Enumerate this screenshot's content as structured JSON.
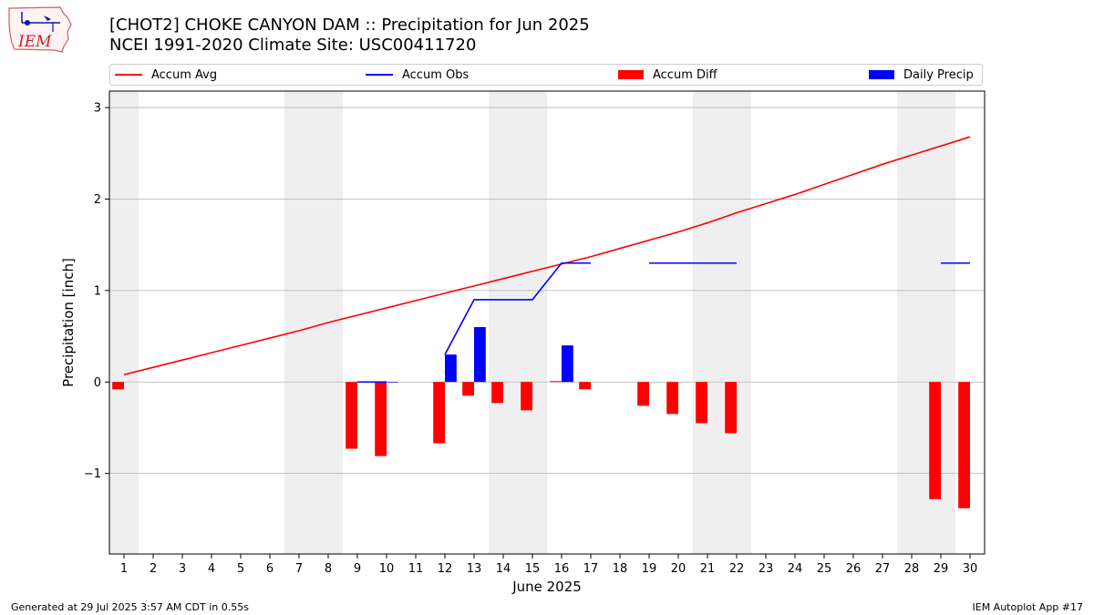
{
  "logo": {
    "text": "IEM",
    "icon": "iowa-state-outline-icon"
  },
  "chart_data": {
    "type": "bar",
    "title": "[CHOT2] CHOKE CANYON DAM :: Precipitation for Jun 2025",
    "subtitle": "NCEI 1991-2020 Climate Site: USC00411720",
    "xlabel": "June 2025",
    "ylabel": "Precipitation [inch]",
    "xlim": [
      0.5,
      30.5
    ],
    "ylim": [
      -1.88,
      3.18
    ],
    "yticks": [
      -1,
      0,
      1,
      2,
      3
    ],
    "ytick_labels": [
      "−1",
      "0",
      "1",
      "2",
      "3"
    ],
    "xticks": [
      1,
      2,
      3,
      4,
      5,
      6,
      7,
      8,
      9,
      10,
      11,
      12,
      13,
      14,
      15,
      16,
      17,
      18,
      19,
      20,
      21,
      22,
      23,
      24,
      25,
      26,
      27,
      28,
      29,
      30
    ],
    "grid": true,
    "legend_position": "top",
    "weekend_shading_days": [
      1,
      7,
      8,
      14,
      15,
      21,
      22,
      28,
      29
    ],
    "shading_color": "#efefef",
    "days": [
      1,
      2,
      3,
      4,
      5,
      6,
      7,
      8,
      9,
      10,
      11,
      12,
      13,
      14,
      15,
      16,
      17,
      18,
      19,
      20,
      21,
      22,
      23,
      24,
      25,
      26,
      27,
      28,
      29,
      30
    ],
    "series": [
      {
        "name": "Accum Avg",
        "kind": "line",
        "color": "#ff0000",
        "values": [
          0.08,
          0.16,
          0.24,
          0.32,
          0.4,
          0.48,
          0.56,
          0.65,
          0.73,
          0.81,
          0.89,
          0.97,
          1.05,
          1.13,
          1.21,
          1.29,
          1.37,
          1.46,
          1.55,
          1.64,
          1.74,
          1.85,
          1.95,
          2.05,
          2.16,
          2.27,
          2.38,
          2.48,
          2.58,
          2.68
        ]
      },
      {
        "name": "Accum Obs",
        "kind": "line",
        "color": "#0000ff",
        "values": [
          null,
          null,
          null,
          null,
          null,
          null,
          null,
          null,
          0.0,
          0.0,
          null,
          0.3,
          0.9,
          0.9,
          0.9,
          1.3,
          1.3,
          null,
          1.3,
          1.3,
          1.3,
          1.3,
          null,
          null,
          null,
          null,
          null,
          null,
          1.3,
          1.3
        ]
      },
      {
        "name": "Accum Diff",
        "kind": "bar",
        "color": "#ff0000",
        "offset": -0.2,
        "width": 0.4,
        "values": [
          -0.08,
          null,
          null,
          null,
          null,
          null,
          null,
          null,
          -0.73,
          -0.81,
          null,
          -0.67,
          -0.15,
          -0.23,
          -0.31,
          0.01,
          -0.08,
          null,
          -0.26,
          -0.35,
          -0.45,
          -0.56,
          null,
          null,
          null,
          null,
          null,
          null,
          -1.28,
          -1.38
        ]
      },
      {
        "name": "Daily Precip",
        "kind": "bar",
        "color": "#0000ff",
        "offset": 0.2,
        "width": 0.4,
        "values": [
          null,
          null,
          null,
          null,
          null,
          null,
          null,
          null,
          0.0,
          0.0,
          null,
          0.3,
          0.6,
          null,
          null,
          0.4,
          null,
          null,
          null,
          null,
          null,
          null,
          null,
          null,
          null,
          null,
          null,
          null,
          null,
          null
        ]
      }
    ]
  },
  "footer": {
    "left": "Generated at 29 Jul 2025 3:57 AM CDT in 0.55s",
    "right": "IEM Autoplot App #17"
  }
}
